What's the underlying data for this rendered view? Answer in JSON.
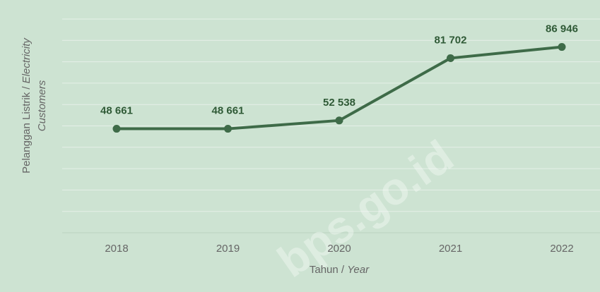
{
  "chart_data": {
    "type": "line",
    "categories": [
      "2018",
      "2019",
      "2020",
      "2021",
      "2022"
    ],
    "series": [
      {
        "name": "Pelanggan Listrik",
        "color": "#3e6b48",
        "values": [
          48661,
          48661,
          52538,
          81702,
          86946
        ],
        "value_labels": [
          "48 661",
          "48 661",
          "52 538",
          "81 702",
          "86 946"
        ]
      }
    ],
    "ylim": [
      0,
      100000
    ],
    "yticks": [
      0,
      10000,
      20000,
      30000,
      40000,
      50000,
      60000,
      70000,
      80000,
      90000,
      100000
    ],
    "grid": true,
    "ylabel": [
      "Pelanggan Listrik / ",
      "Electricity",
      "Customers"
    ],
    "xlabel": [
      "Tahun / ",
      "Year"
    ],
    "watermark": "bps.go.id"
  }
}
